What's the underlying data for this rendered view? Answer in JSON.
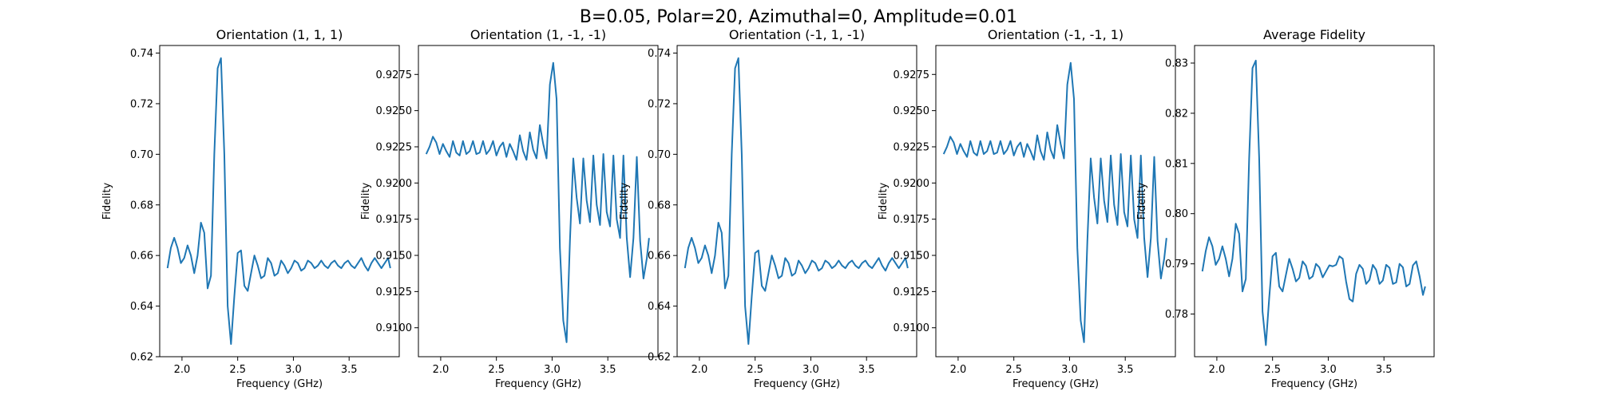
{
  "figure": {
    "suptitle": "B=0.05, Polar=20, Azimuthal=0, Amplitude=0.01",
    "line_color": "#1f77b4"
  },
  "chart_data": [
    {
      "type": "line",
      "title": "Orientation (1, 1, 1)",
      "xlabel": "Frequency (GHz)",
      "ylabel": "Fidelity",
      "xlim": [
        1.8,
        3.95
      ],
      "ylim": [
        0.62,
        0.743
      ],
      "xticks": [
        "2.0",
        "2.5",
        "3.0",
        "3.5"
      ],
      "yticks": [
        "0.62",
        "0.64",
        "0.66",
        "0.68",
        "0.70",
        "0.72",
        "0.74"
      ],
      "grid": false,
      "series": [
        {
          "x": [
            1.87,
            1.9,
            1.93,
            1.96,
            1.99,
            2.02,
            2.05,
            2.08,
            2.11,
            2.14,
            2.17,
            2.2,
            2.23,
            2.26,
            2.29,
            2.32,
            2.35,
            2.38,
            2.41,
            2.44,
            2.47,
            2.5,
            2.53,
            2.56,
            2.59,
            2.62,
            2.65,
            2.68,
            2.71,
            2.74,
            2.77,
            2.8,
            2.83,
            2.86,
            2.89,
            2.92,
            2.95,
            2.98,
            3.01,
            3.04,
            3.07,
            3.1,
            3.13,
            3.16,
            3.19,
            3.22,
            3.25,
            3.28,
            3.31,
            3.34,
            3.37,
            3.4,
            3.43,
            3.46,
            3.49,
            3.52,
            3.55,
            3.58,
            3.61,
            3.64,
            3.67,
            3.7,
            3.73,
            3.76,
            3.79,
            3.82,
            3.85,
            3.87
          ],
          "y": [
            0.655,
            0.663,
            0.667,
            0.663,
            0.657,
            0.659,
            0.664,
            0.66,
            0.653,
            0.66,
            0.673,
            0.669,
            0.647,
            0.652,
            0.7,
            0.734,
            0.738,
            0.7,
            0.64,
            0.625,
            0.644,
            0.661,
            0.662,
            0.648,
            0.646,
            0.653,
            0.66,
            0.656,
            0.651,
            0.652,
            0.659,
            0.657,
            0.652,
            0.653,
            0.658,
            0.656,
            0.653,
            0.655,
            0.658,
            0.657,
            0.654,
            0.655,
            0.658,
            0.657,
            0.655,
            0.656,
            0.658,
            0.656,
            0.655,
            0.657,
            0.658,
            0.656,
            0.655,
            0.657,
            0.658,
            0.656,
            0.655,
            0.657,
            0.659,
            0.656,
            0.654,
            0.657,
            0.659,
            0.657,
            0.655,
            0.657,
            0.659,
            0.655
          ]
        }
      ]
    },
    {
      "type": "line",
      "title": "Orientation (1, -1, -1)",
      "xlabel": "Frequency (GHz)",
      "ylabel": "Fidelity",
      "xlim": [
        1.8,
        3.95
      ],
      "ylim": [
        0.908,
        0.9295
      ],
      "xticks": [
        "2.0",
        "2.5",
        "3.0",
        "3.5"
      ],
      "yticks": [
        "0.9100",
        "0.9125",
        "0.9150",
        "0.9175",
        "0.9200",
        "0.9225",
        "0.9250",
        "0.9275"
      ],
      "grid": false,
      "series": [
        {
          "x": [
            1.87,
            1.9,
            1.93,
            1.96,
            1.99,
            2.02,
            2.05,
            2.08,
            2.11,
            2.14,
            2.17,
            2.2,
            2.23,
            2.26,
            2.29,
            2.32,
            2.35,
            2.38,
            2.41,
            2.44,
            2.47,
            2.5,
            2.53,
            2.56,
            2.59,
            2.62,
            2.65,
            2.68,
            2.71,
            2.74,
            2.77,
            2.8,
            2.83,
            2.86,
            2.89,
            2.92,
            2.95,
            2.98,
            3.01,
            3.04,
            3.07,
            3.1,
            3.13,
            3.16,
            3.19,
            3.22,
            3.25,
            3.28,
            3.31,
            3.34,
            3.37,
            3.4,
            3.43,
            3.46,
            3.49,
            3.52,
            3.55,
            3.58,
            3.61,
            3.64,
            3.67,
            3.7,
            3.73,
            3.76,
            3.79,
            3.82,
            3.85,
            3.87
          ],
          "y": [
            0.922,
            0.9225,
            0.9232,
            0.9228,
            0.922,
            0.9227,
            0.9222,
            0.9218,
            0.9229,
            0.9221,
            0.9219,
            0.9229,
            0.922,
            0.9222,
            0.9229,
            0.922,
            0.9221,
            0.9229,
            0.922,
            0.9223,
            0.9229,
            0.9219,
            0.9225,
            0.9228,
            0.9218,
            0.9227,
            0.9222,
            0.9216,
            0.9233,
            0.9222,
            0.9216,
            0.9235,
            0.9223,
            0.9217,
            0.924,
            0.9227,
            0.9217,
            0.9268,
            0.9283,
            0.9258,
            0.9155,
            0.9105,
            0.909,
            0.916,
            0.9217,
            0.919,
            0.9172,
            0.9217,
            0.9188,
            0.9173,
            0.9219,
            0.9185,
            0.9171,
            0.922,
            0.918,
            0.917,
            0.9219,
            0.9175,
            0.9162,
            0.9219,
            0.9162,
            0.9135,
            0.9162,
            0.9218,
            0.916,
            0.9134,
            0.9148,
            0.9162
          ]
        }
      ]
    },
    {
      "type": "line",
      "title": "Orientation (-1, 1, -1)",
      "xlabel": "Frequency (GHz)",
      "ylabel": "Fidelity",
      "xlim": [
        1.8,
        3.95
      ],
      "ylim": [
        0.62,
        0.743
      ],
      "xticks": [
        "2.0",
        "2.5",
        "3.0",
        "3.5"
      ],
      "yticks": [
        "0.62",
        "0.64",
        "0.66",
        "0.68",
        "0.70",
        "0.72",
        "0.74"
      ],
      "grid": false,
      "series": [
        {
          "x": [
            1.87,
            1.9,
            1.93,
            1.96,
            1.99,
            2.02,
            2.05,
            2.08,
            2.11,
            2.14,
            2.17,
            2.2,
            2.23,
            2.26,
            2.29,
            2.32,
            2.35,
            2.38,
            2.41,
            2.44,
            2.47,
            2.5,
            2.53,
            2.56,
            2.59,
            2.62,
            2.65,
            2.68,
            2.71,
            2.74,
            2.77,
            2.8,
            2.83,
            2.86,
            2.89,
            2.92,
            2.95,
            2.98,
            3.01,
            3.04,
            3.07,
            3.1,
            3.13,
            3.16,
            3.19,
            3.22,
            3.25,
            3.28,
            3.31,
            3.34,
            3.37,
            3.4,
            3.43,
            3.46,
            3.49,
            3.52,
            3.55,
            3.58,
            3.61,
            3.64,
            3.67,
            3.7,
            3.73,
            3.76,
            3.79,
            3.82,
            3.85,
            3.87
          ],
          "y": [
            0.655,
            0.663,
            0.667,
            0.663,
            0.657,
            0.659,
            0.664,
            0.66,
            0.653,
            0.66,
            0.673,
            0.669,
            0.647,
            0.652,
            0.7,
            0.734,
            0.738,
            0.7,
            0.64,
            0.625,
            0.644,
            0.661,
            0.662,
            0.648,
            0.646,
            0.653,
            0.66,
            0.656,
            0.651,
            0.652,
            0.659,
            0.657,
            0.652,
            0.653,
            0.658,
            0.656,
            0.653,
            0.655,
            0.658,
            0.657,
            0.654,
            0.655,
            0.658,
            0.657,
            0.655,
            0.656,
            0.658,
            0.656,
            0.655,
            0.657,
            0.658,
            0.656,
            0.655,
            0.657,
            0.658,
            0.656,
            0.655,
            0.657,
            0.659,
            0.656,
            0.654,
            0.657,
            0.659,
            0.657,
            0.655,
            0.657,
            0.659,
            0.655
          ]
        }
      ]
    },
    {
      "type": "line",
      "title": "Orientation (-1, -1, 1)",
      "xlabel": "Frequency (GHz)",
      "ylabel": "Fidelity",
      "xlim": [
        1.8,
        3.95
      ],
      "ylim": [
        0.908,
        0.9295
      ],
      "xticks": [
        "2.0",
        "2.5",
        "3.0",
        "3.5"
      ],
      "yticks": [
        "0.9100",
        "0.9125",
        "0.9150",
        "0.9175",
        "0.9200",
        "0.9225",
        "0.9250",
        "0.9275"
      ],
      "grid": false,
      "series": [
        {
          "x": [
            1.87,
            1.9,
            1.93,
            1.96,
            1.99,
            2.02,
            2.05,
            2.08,
            2.11,
            2.14,
            2.17,
            2.2,
            2.23,
            2.26,
            2.29,
            2.32,
            2.35,
            2.38,
            2.41,
            2.44,
            2.47,
            2.5,
            2.53,
            2.56,
            2.59,
            2.62,
            2.65,
            2.68,
            2.71,
            2.74,
            2.77,
            2.8,
            2.83,
            2.86,
            2.89,
            2.92,
            2.95,
            2.98,
            3.01,
            3.04,
            3.07,
            3.1,
            3.13,
            3.16,
            3.19,
            3.22,
            3.25,
            3.28,
            3.31,
            3.34,
            3.37,
            3.4,
            3.43,
            3.46,
            3.49,
            3.52,
            3.55,
            3.58,
            3.61,
            3.64,
            3.67,
            3.7,
            3.73,
            3.76,
            3.79,
            3.82,
            3.85,
            3.87
          ],
          "y": [
            0.922,
            0.9225,
            0.9232,
            0.9228,
            0.922,
            0.9227,
            0.9222,
            0.9218,
            0.9229,
            0.9221,
            0.9219,
            0.9229,
            0.922,
            0.9222,
            0.9229,
            0.922,
            0.9221,
            0.9229,
            0.922,
            0.9223,
            0.9229,
            0.9219,
            0.9225,
            0.9228,
            0.9218,
            0.9227,
            0.9222,
            0.9216,
            0.9233,
            0.9222,
            0.9216,
            0.9235,
            0.9223,
            0.9217,
            0.924,
            0.9227,
            0.9217,
            0.9268,
            0.9283,
            0.9258,
            0.9155,
            0.9105,
            0.909,
            0.916,
            0.9217,
            0.919,
            0.9172,
            0.9217,
            0.9188,
            0.9173,
            0.9219,
            0.9185,
            0.9171,
            0.922,
            0.918,
            0.917,
            0.9219,
            0.9175,
            0.9162,
            0.9219,
            0.9162,
            0.9135,
            0.9162,
            0.9218,
            0.916,
            0.9134,
            0.9148,
            0.9162
          ]
        }
      ]
    },
    {
      "type": "line",
      "title": "Average Fidelity",
      "xlabel": "Frequency (GHz)",
      "ylabel": "Fidelity",
      "xlim": [
        1.8,
        3.95
      ],
      "ylim": [
        0.7715,
        0.8335
      ],
      "xticks": [
        "2.0",
        "2.5",
        "3.0",
        "3.5"
      ],
      "yticks": [
        "0.78",
        "0.79",
        "0.80",
        "0.81",
        "0.82",
        "0.83"
      ],
      "grid": false,
      "series": [
        {
          "x": [
            1.87,
            1.9,
            1.93,
            1.96,
            1.99,
            2.02,
            2.05,
            2.08,
            2.11,
            2.14,
            2.17,
            2.2,
            2.23,
            2.26,
            2.29,
            2.32,
            2.35,
            2.38,
            2.41,
            2.44,
            2.47,
            2.5,
            2.53,
            2.56,
            2.59,
            2.62,
            2.65,
            2.68,
            2.71,
            2.74,
            2.77,
            2.8,
            2.83,
            2.86,
            2.89,
            2.92,
            2.95,
            2.98,
            3.01,
            3.04,
            3.07,
            3.1,
            3.13,
            3.16,
            3.19,
            3.22,
            3.25,
            3.28,
            3.31,
            3.34,
            3.37,
            3.4,
            3.43,
            3.46,
            3.49,
            3.52,
            3.55,
            3.58,
            3.61,
            3.64,
            3.67,
            3.7,
            3.73,
            3.76,
            3.79,
            3.82,
            3.85,
            3.87
          ],
          "y": [
            0.7885,
            0.7925,
            0.7953,
            0.7935,
            0.7898,
            0.791,
            0.7935,
            0.791,
            0.7875,
            0.791,
            0.798,
            0.796,
            0.7845,
            0.787,
            0.811,
            0.829,
            0.8305,
            0.811,
            0.7805,
            0.7738,
            0.7832,
            0.7915,
            0.7922,
            0.7855,
            0.7845,
            0.7878,
            0.791,
            0.789,
            0.7865,
            0.7872,
            0.7905,
            0.7896,
            0.787,
            0.7875,
            0.79,
            0.7893,
            0.7873,
            0.7885,
            0.7897,
            0.7895,
            0.7898,
            0.7915,
            0.791,
            0.7865,
            0.783,
            0.7825,
            0.788,
            0.7898,
            0.789,
            0.786,
            0.7868,
            0.7898,
            0.7888,
            0.786,
            0.7867,
            0.7898,
            0.7892,
            0.786,
            0.7863,
            0.79,
            0.7893,
            0.7855,
            0.786,
            0.7897,
            0.7905,
            0.7875,
            0.7838,
            0.7855
          ]
        }
      ]
    }
  ]
}
